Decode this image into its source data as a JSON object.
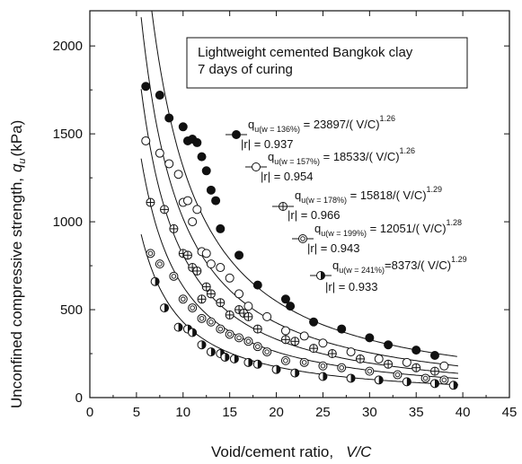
{
  "chart_data": {
    "type": "scatter",
    "title_lines": [
      "Lightweight cemented Bangkok clay",
      "7 days of curing"
    ],
    "xlabel": "Void/cement ratio,",
    "xlabel_var": "V/C",
    "ylabel": "Unconfined compressive strength,",
    "ylabel_var": "q",
    "ylabel_sub": "u",
    "ylabel_unit": "(kPa)",
    "xlim": [
      0,
      45
    ],
    "ylim": [
      0,
      2200
    ],
    "xticks": [
      0,
      5,
      10,
      15,
      20,
      25,
      30,
      35,
      40,
      45
    ],
    "yticks": [
      0,
      500,
      1000,
      1500,
      2000
    ],
    "series": [
      {
        "marker": "filled",
        "A": 23897,
        "B": 1.26,
        "eq_prefix": "q",
        "eq_sub": "u(w = 136%)",
        "eq_body": " = 23897/( V/C)",
        "eq_exp": "1.26",
        "r_text": "|r| = 0.937",
        "x": [
          6,
          7.5,
          8.5,
          10,
          10.5,
          11,
          11.5,
          12,
          12.5,
          13,
          13.5,
          14,
          16,
          18,
          21,
          21.5,
          24,
          27,
          30,
          32,
          35,
          37
        ],
        "y": [
          1770,
          1720,
          1590,
          1540,
          1460,
          1470,
          1450,
          1370,
          1290,
          1180,
          1120,
          960,
          810,
          640,
          560,
          520,
          430,
          390,
          340,
          300,
          270,
          240
        ]
      },
      {
        "marker": "open",
        "A": 18533,
        "B": 1.26,
        "eq_prefix": "q",
        "eq_sub": "u(w = 157%)",
        "eq_body": " = 18533/( V/C)",
        "eq_exp": "1.26",
        "r_text": "|r| = 0.954",
        "x": [
          6,
          7.5,
          8.5,
          9.5,
          10,
          10.5,
          11,
          11.5,
          12,
          12.5,
          13,
          14,
          15,
          16,
          17,
          19,
          21,
          23,
          25,
          28,
          31,
          34,
          38
        ],
        "y": [
          1460,
          1390,
          1330,
          1270,
          1110,
          1120,
          1000,
          1070,
          830,
          820,
          760,
          740,
          680,
          590,
          520,
          460,
          380,
          350,
          310,
          260,
          220,
          200,
          180
        ]
      },
      {
        "marker": "crossed",
        "A": 15818,
        "B": 1.29,
        "eq_prefix": "q",
        "eq_sub": "u(w = 178%)",
        "eq_body": " = 15818/( V/C)",
        "eq_exp": "1.29",
        "r_text": "|r| = 0.966",
        "x": [
          6.5,
          8,
          9,
          10,
          10.5,
          11,
          11.5,
          12,
          12.5,
          13,
          14,
          15,
          16,
          16.5,
          17,
          18,
          21,
          22,
          24,
          26,
          29,
          32,
          35,
          37
        ],
        "y": [
          1110,
          1070,
          960,
          820,
          810,
          740,
          720,
          560,
          630,
          590,
          540,
          470,
          500,
          480,
          460,
          390,
          330,
          320,
          280,
          250,
          220,
          190,
          170,
          150
        ]
      },
      {
        "marker": "dotted",
        "A": 12051,
        "B": 1.28,
        "eq_prefix": "q",
        "eq_sub": "u(w = 199%)",
        "eq_body": " = 12051/( V/C)",
        "eq_exp": "1.28",
        "r_text": "|r| = 0.943",
        "x": [
          6.5,
          7.5,
          9,
          10,
          11,
          12,
          13,
          14,
          15,
          16,
          17,
          18,
          19,
          21,
          23,
          25,
          27,
          30,
          33,
          36,
          38
        ],
        "y": [
          820,
          760,
          690,
          560,
          510,
          450,
          430,
          390,
          360,
          340,
          320,
          290,
          260,
          210,
          200,
          180,
          170,
          150,
          130,
          110,
          100
        ]
      },
      {
        "marker": "half",
        "A": 8373,
        "B": 1.29,
        "eq_prefix": "q",
        "eq_sub": "u(w = 241%)",
        "eq_body": "=8373/( V/C)",
        "eq_exp": "1.29",
        "r_text": "|r| = 0.933",
        "x": [
          7,
          8,
          9.5,
          10.5,
          11,
          12,
          13,
          14,
          14.5,
          15.5,
          17,
          18,
          20,
          22,
          25,
          28,
          31,
          34,
          37,
          39
        ],
        "y": [
          660,
          510,
          400,
          390,
          370,
          300,
          260,
          250,
          230,
          220,
          200,
          190,
          160,
          140,
          120,
          110,
          100,
          90,
          80,
          70
        ]
      }
    ]
  }
}
